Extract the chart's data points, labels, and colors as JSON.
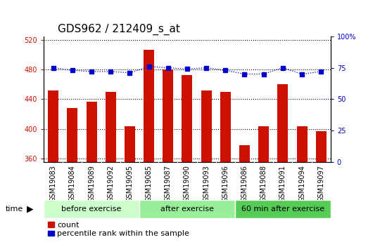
{
  "title": "GDS962 / 212409_s_at",
  "categories": [
    "GSM19083",
    "GSM19084",
    "GSM19089",
    "GSM19092",
    "GSM19095",
    "GSM19085",
    "GSM19087",
    "GSM19090",
    "GSM19093",
    "GSM19096",
    "GSM19086",
    "GSM19088",
    "GSM19091",
    "GSM19094",
    "GSM19097"
  ],
  "bar_values": [
    452,
    428,
    437,
    450,
    403,
    507,
    480,
    473,
    452,
    450,
    378,
    403,
    460,
    403,
    397
  ],
  "dot_values": [
    75,
    73,
    72,
    72,
    71,
    76,
    75,
    74,
    75,
    73,
    70,
    70,
    75,
    70,
    72
  ],
  "ylim_left": [
    355,
    525
  ],
  "ylim_right": [
    0,
    100
  ],
  "yticks_left": [
    360,
    400,
    440,
    480,
    520
  ],
  "yticks_right": [
    0,
    25,
    50,
    75,
    100
  ],
  "groups": [
    {
      "label": "before exercise",
      "start": 0,
      "end": 5,
      "color": "#ccffcc"
    },
    {
      "label": "after exercise",
      "start": 5,
      "end": 10,
      "color": "#99ee99"
    },
    {
      "label": "60 min after exercise",
      "start": 10,
      "end": 15,
      "color": "#55cc55"
    }
  ],
  "bar_color": "#cc1100",
  "dot_color": "#0000cc",
  "left_axis_color": "#cc1100",
  "right_axis_color": "#0000cc",
  "grid_color": "#000000",
  "xticklabel_bg": "#c8c8c8",
  "title_fontsize": 11,
  "tick_fontsize": 7,
  "group_fontsize": 8,
  "legend_fontsize": 8,
  "time_fontsize": 8,
  "bar_width": 0.55
}
